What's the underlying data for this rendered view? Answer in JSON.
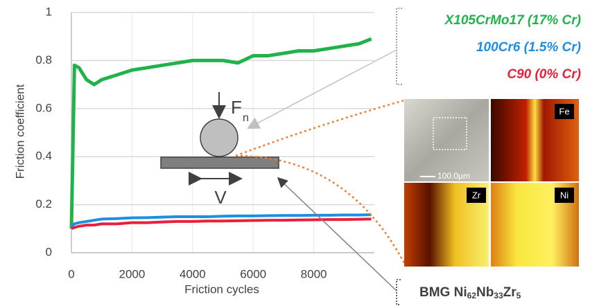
{
  "chart_data": {
    "type": "line",
    "y_label": "Friction coefficient",
    "x_label": "Friction cycles",
    "x": [
      0,
      100,
      250,
      500,
      750,
      1000,
      1500,
      2000,
      2500,
      3000,
      3500,
      4000,
      4500,
      5000,
      5500,
      6000,
      6500,
      7000,
      7500,
      8000,
      8500,
      9000,
      9500,
      9900
    ],
    "series": [
      {
        "name": "X105CrMo17 (17% Cr)",
        "color": "#22b24c",
        "values": [
          0.1,
          0.78,
          0.77,
          0.72,
          0.7,
          0.72,
          0.74,
          0.76,
          0.77,
          0.78,
          0.79,
          0.8,
          0.8,
          0.8,
          0.79,
          0.82,
          0.82,
          0.83,
          0.84,
          0.84,
          0.85,
          0.86,
          0.87,
          0.89
        ]
      },
      {
        "name": "100Cr6 (1.5% Cr)",
        "color": "#1e8fe0",
        "values": [
          0.11,
          0.12,
          0.125,
          0.13,
          0.135,
          0.14,
          0.142,
          0.145,
          0.146,
          0.148,
          0.15,
          0.15,
          0.15,
          0.152,
          0.153,
          0.153,
          0.154,
          0.155,
          0.155,
          0.156,
          0.156,
          0.157,
          0.157,
          0.158
        ]
      },
      {
        "name": "C90 (0% Cr)",
        "color": "#e8203a",
        "values": [
          0.1,
          0.105,
          0.11,
          0.115,
          0.115,
          0.12,
          0.12,
          0.125,
          0.125,
          0.128,
          0.13,
          0.13,
          0.132,
          0.132,
          0.133,
          0.134,
          0.135,
          0.135,
          0.136,
          0.137,
          0.138,
          0.138,
          0.139,
          0.14
        ]
      }
    ],
    "xlim": [
      0,
      10000
    ],
    "xticks": [
      0,
      2000,
      4000,
      6000,
      8000
    ],
    "ylim": [
      0,
      1
    ],
    "yticks": [
      0,
      0.2,
      0.4,
      0.6,
      0.8,
      1
    ],
    "grid": true,
    "schematic": {
      "force": "F",
      "force_sub": "n",
      "velocity": "V"
    },
    "micrographs": {
      "scale": "100.0µm",
      "maps": [
        "Fe",
        "Zr",
        "Ni"
      ]
    },
    "sample": {
      "parts": [
        "BMG Ni",
        "62",
        "Nb",
        "33",
        "Zr",
        "5"
      ]
    }
  }
}
